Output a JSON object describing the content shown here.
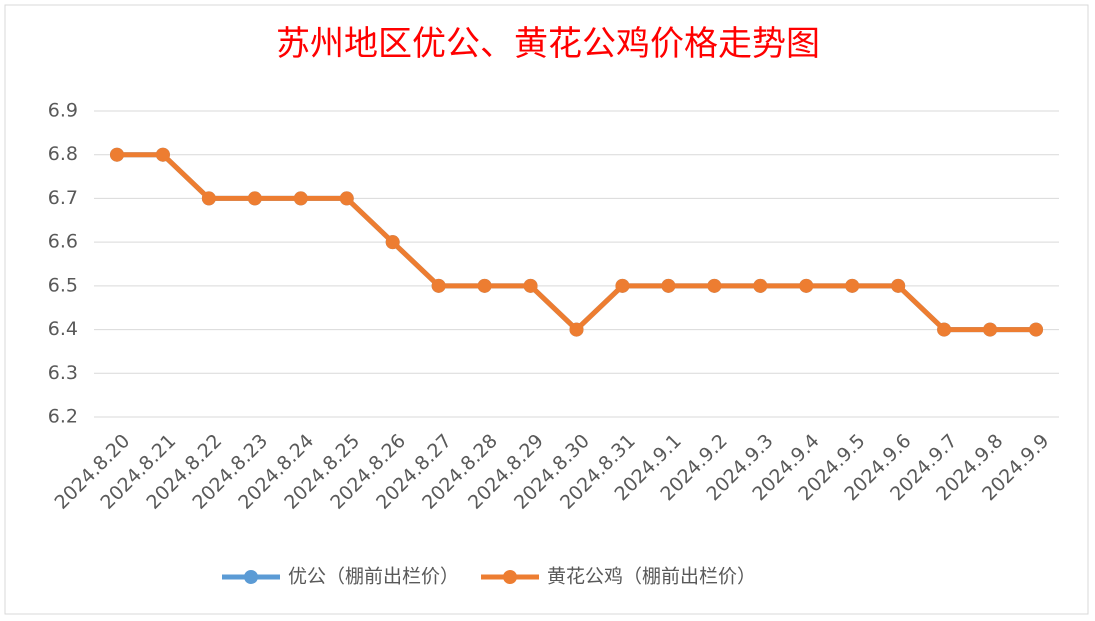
{
  "chart_data": {
    "type": "line",
    "title": "苏州地区优公、黄花公鸡价格走势图",
    "categories": [
      "2024.8.20",
      "2024.8.21",
      "2024.8.22",
      "2024.8.23",
      "2024.8.24",
      "2024.8.25",
      "2024.8.26",
      "2024.8.27",
      "2024.8.28",
      "2024.8.29",
      "2024.8.30",
      "2024.8.31",
      "2024.9.1",
      "2024.9.2",
      "2024.9.3",
      "2024.9.4",
      "2024.9.5",
      "2024.9.6",
      "2024.9.7",
      "2024.9.8",
      "2024.9.9"
    ],
    "series": [
      {
        "name": "优公（棚前出栏价）",
        "color": "#5b9bd5",
        "values": [
          6.8,
          6.8,
          6.7,
          6.7,
          6.7,
          6.7,
          6.6,
          6.5,
          6.5,
          6.5,
          6.4,
          6.5,
          6.5,
          6.5,
          6.5,
          6.5,
          6.5,
          6.5,
          6.4,
          6.4,
          6.4
        ]
      },
      {
        "name": "黄花公鸡（棚前出栏价）",
        "color": "#ed7d31",
        "values": [
          6.8,
          6.8,
          6.7,
          6.7,
          6.7,
          6.7,
          6.6,
          6.5,
          6.5,
          6.5,
          6.4,
          6.5,
          6.5,
          6.5,
          6.5,
          6.5,
          6.5,
          6.5,
          6.4,
          6.4,
          6.4
        ]
      }
    ],
    "ylim": [
      6.2,
      6.9
    ],
    "yticks": [
      6.2,
      6.3,
      6.4,
      6.5,
      6.6,
      6.7,
      6.8,
      6.9
    ],
    "grid": true,
    "legend": "bottom"
  }
}
